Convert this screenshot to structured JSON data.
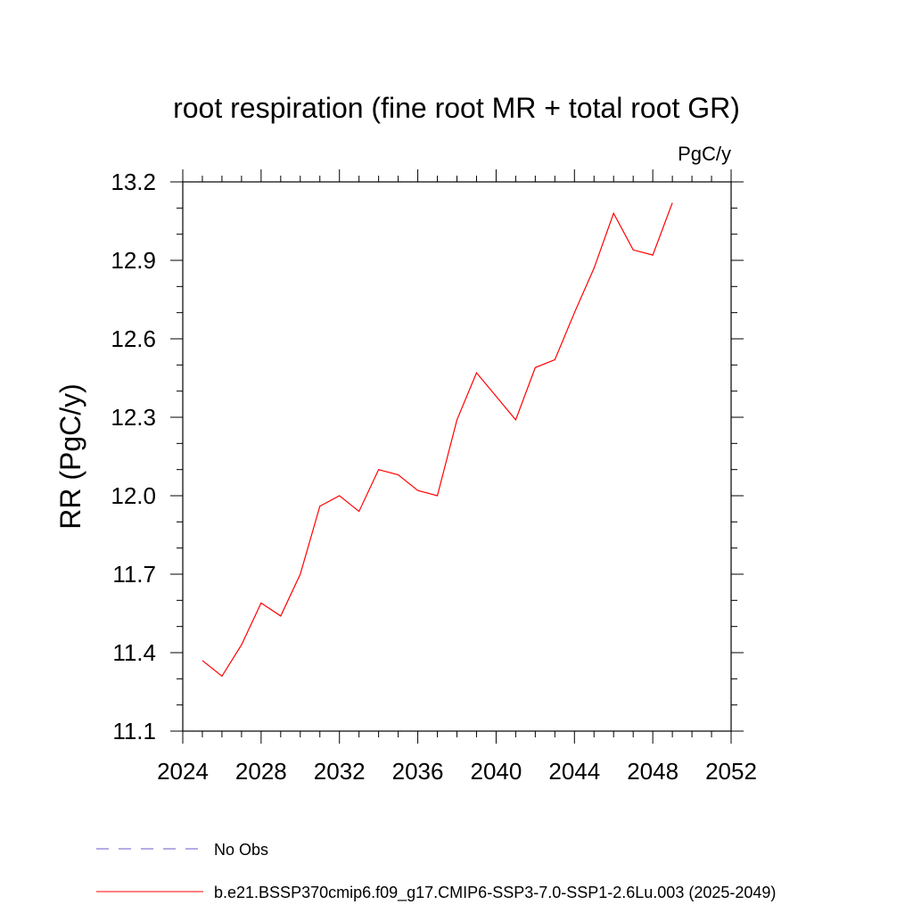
{
  "chart_data": {
    "type": "line",
    "title": "root respiration (fine root MR + total root GR)",
    "units": "PgC/y",
    "xlabel": "",
    "ylabel": "RR  (PgC/y)",
    "xlim": [
      2024,
      2052
    ],
    "ylim": [
      11.1,
      13.2
    ],
    "xticks": [
      2024,
      2028,
      2032,
      2036,
      2040,
      2044,
      2048,
      2052
    ],
    "xtick_labels": [
      "2024",
      "2028",
      "2032",
      "2036",
      "2040",
      "2044",
      "2048",
      "2052"
    ],
    "yticks": [
      11.1,
      11.4,
      11.7,
      12.0,
      12.3,
      12.6,
      12.9,
      13.2
    ],
    "ytick_labels": [
      "11.1",
      "11.4",
      "11.7",
      "12.0",
      "12.3",
      "12.6",
      "12.9",
      "13.2"
    ],
    "grid": false,
    "legend_position": "bottom",
    "legend": [
      {
        "label": "No Obs",
        "color": "#6a5acd",
        "style": "dashed"
      },
      {
        "label": "b.e21.BSSP370cmip6.f09_g17.CMIP6-SSP3-7.0-SSP1-2.6Lu.003 (2025-2049)",
        "color": "#ff0000",
        "style": "solid"
      }
    ],
    "series": [
      {
        "name": "b.e21.BSSP370cmip6.f09_g17.CMIP6-SSP3-7.0-SSP1-2.6Lu.003 (2025-2049)",
        "color": "#ff0000",
        "x": [
          2025,
          2026,
          2027,
          2028,
          2029,
          2030,
          2031,
          2032,
          2033,
          2034,
          2035,
          2036,
          2037,
          2038,
          2039,
          2040,
          2041,
          2042,
          2043,
          2044,
          2045,
          2046,
          2047,
          2048,
          2049
        ],
        "y": [
          11.37,
          11.31,
          11.43,
          11.59,
          11.54,
          11.7,
          11.96,
          12.0,
          11.94,
          12.1,
          12.08,
          12.02,
          12.0,
          12.29,
          12.47,
          12.38,
          12.29,
          12.49,
          12.52,
          12.7,
          12.87,
          13.08,
          12.94,
          12.92,
          13.12
        ]
      }
    ]
  }
}
